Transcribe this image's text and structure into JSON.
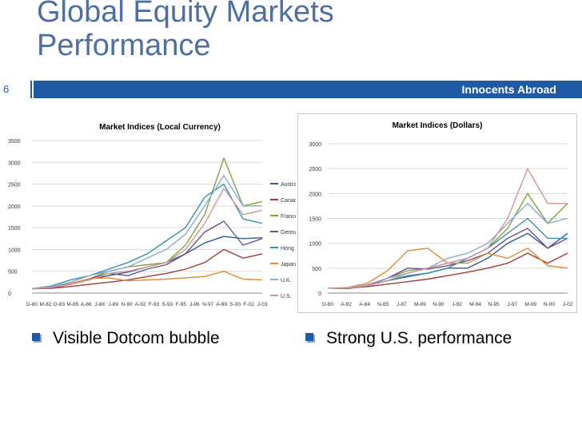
{
  "slide": {
    "title_line1": "Global Equity Markets",
    "title_line2": "Performance",
    "page_number": "6",
    "tagline": "Innocents Abroad",
    "bullets": [
      "Visible Dotcom bubble",
      "Strong U.S. performance"
    ]
  },
  "colors": {
    "accent": "#1e5aa5",
    "title": "#4f6fa3",
    "Australia": "#2e5d8f",
    "Canada": "#a23a38",
    "France": "#7fa23a",
    "Germany": "#6a4f95",
    "Hong Kong": "#3590b0",
    "Japan": "#e28a2c",
    "U.K.": "#8fa7d2",
    "U.S.": "#d19593"
  },
  "chart_data": [
    {
      "type": "line",
      "title": "Market Indices (Local Currency)",
      "xlabel": "",
      "ylabel": "",
      "ylim": [
        0,
        3500
      ],
      "yticks": [
        "0",
        "500",
        "1000",
        "1500",
        "2000",
        "2500",
        "3000",
        "3500"
      ],
      "xticks": [
        "D-80",
        "M-82",
        "O-83",
        "M-85",
        "A-86",
        "J-88",
        "J-89",
        "N-90",
        "A-92",
        "F-93",
        "S-93",
        "F-95",
        "J-96",
        "N-97",
        "A-99",
        "S-00",
        "F-02",
        "J-03"
      ],
      "legend": "right",
      "grid": true,
      "x": [
        0,
        2,
        4,
        6,
        8,
        10,
        12,
        14,
        16,
        18,
        20,
        22,
        24
      ],
      "series": [
        {
          "name": "Australia",
          "values": [
            100,
            130,
            200,
            320,
            400,
            480,
            600,
            700,
            900,
            1150,
            1300,
            1250,
            1270
          ]
        },
        {
          "name": "Canada",
          "values": [
            100,
            110,
            150,
            200,
            250,
            300,
            380,
            450,
            550,
            700,
            1000,
            800,
            900
          ]
        },
        {
          "name": "France",
          "values": [
            100,
            130,
            220,
            330,
            500,
            600,
            650,
            700,
            1100,
            1800,
            3100,
            2000,
            2100
          ]
        },
        {
          "name": "Germany",
          "values": [
            100,
            120,
            200,
            330,
            450,
            400,
            550,
            650,
            900,
            1400,
            1650,
            1100,
            1250
          ]
        },
        {
          "name": "Hong Kong",
          "values": [
            100,
            160,
            300,
            400,
            550,
            700,
            900,
            1200,
            1500,
            2200,
            2500,
            1700,
            1600
          ]
        },
        {
          "name": "Japan",
          "values": [
            100,
            140,
            220,
            330,
            350,
            280,
            300,
            320,
            350,
            380,
            500,
            320,
            300
          ]
        },
        {
          "name": "U.K.",
          "values": [
            100,
            140,
            250,
            400,
            500,
            600,
            800,
            1000,
            1350,
            2000,
            2700,
            2000,
            2000
          ]
        },
        {
          "name": "U.S.",
          "values": [
            100,
            130,
            200,
            300,
            450,
            500,
            600,
            700,
            1000,
            1600,
            2400,
            1800,
            1900
          ]
        }
      ]
    },
    {
      "type": "line",
      "title": "Market Indices (Dollars)",
      "xlabel": "",
      "ylabel": "",
      "ylim": [
        0,
        3000
      ],
      "yticks": [
        "0",
        "500",
        "1000",
        "1500",
        "2000",
        "2500",
        "3000"
      ],
      "xticks": [
        "D-80",
        "A-82",
        "A-84",
        "N-85",
        "J-87",
        "M-89",
        "N-90",
        "J-92",
        "M-94",
        "N-95",
        "J-97",
        "M-99",
        "N-00",
        "J-02"
      ],
      "legend": "none",
      "grid": true,
      "x": [
        0,
        2,
        4,
        6,
        8,
        10,
        12,
        14,
        16,
        18,
        20,
        22,
        24
      ],
      "series": [
        {
          "name": "Australia",
          "values": [
            100,
            100,
            150,
            250,
            330,
            400,
            500,
            500,
            700,
            1000,
            1200,
            900,
            1200
          ]
        },
        {
          "name": "Canada",
          "values": [
            100,
            100,
            130,
            180,
            230,
            280,
            350,
            420,
            500,
            600,
            800,
            600,
            800
          ]
        },
        {
          "name": "France",
          "values": [
            100,
            90,
            150,
            300,
            450,
            500,
            600,
            700,
            900,
            1300,
            2000,
            1400,
            1800
          ]
        },
        {
          "name": "Germany",
          "values": [
            100,
            90,
            150,
            300,
            500,
            480,
            550,
            650,
            800,
            1100,
            1300,
            900,
            1100
          ]
        },
        {
          "name": "Hong Kong",
          "values": [
            100,
            100,
            150,
            250,
            350,
            400,
            500,
            700,
            900,
            1200,
            1500,
            1100,
            1100
          ]
        },
        {
          "name": "Japan",
          "values": [
            100,
            110,
            200,
            450,
            850,
            900,
            600,
            600,
            800,
            700,
            900,
            550,
            500
          ]
        },
        {
          "name": "U.K.",
          "values": [
            100,
            100,
            170,
            300,
            400,
            500,
            700,
            800,
            1000,
            1400,
            1800,
            1400,
            1500
          ]
        },
        {
          "name": "U.S.",
          "values": [
            100,
            100,
            150,
            250,
            400,
            500,
            600,
            700,
            900,
            1500,
            2500,
            1800,
            1800
          ]
        }
      ]
    }
  ]
}
